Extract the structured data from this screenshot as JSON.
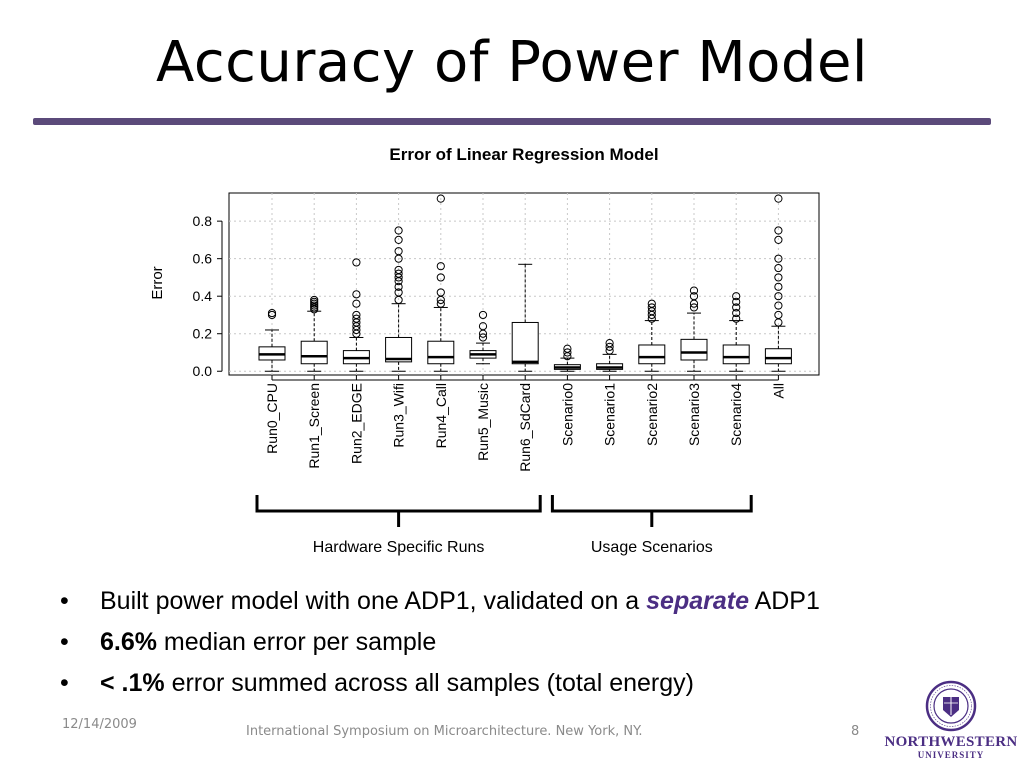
{
  "slide": {
    "title": "Accuracy of Power Model",
    "bullets": [
      {
        "parts": [
          {
            "text": "Built power model with one ADP1, validated on a ",
            "style": "normal"
          },
          {
            "text": "separate",
            "style": "emph"
          },
          {
            "text": " ADP1",
            "style": "normal"
          }
        ]
      },
      {
        "parts": [
          {
            "text": "6.6%",
            "style": "bold"
          },
          {
            "text": " median error per sample",
            "style": "normal"
          }
        ]
      },
      {
        "parts": [
          {
            "text": "< .1%",
            "style": "bold"
          },
          {
            "text": " error summed across all samples (total energy)",
            "style": "normal"
          }
        ]
      }
    ],
    "bullet_symbol": "•"
  },
  "footer": {
    "date": "12/14/2009",
    "text": "International Symposium on Microarchitecture.  New York, NY.",
    "page": "8"
  },
  "logo": {
    "line1": "NORTHWESTERN",
    "line2": "UNIVERSITY"
  },
  "colors": {
    "accent": "#5b4a7a",
    "brand": "#4b2e83"
  },
  "chart_data": {
    "type": "boxplot",
    "title": "Error of Linear Regression Model",
    "ylabel": "Error",
    "xlabel": "",
    "ylim": [
      -0.02,
      0.95
    ],
    "yticks": [
      0.0,
      0.2,
      0.4,
      0.6,
      0.8
    ],
    "ytick_labels": [
      "0.0",
      "0.2",
      "0.4",
      "0.6",
      "0.8"
    ],
    "grid": true,
    "categories": [
      "Run0_CPU",
      "Run1_Screen",
      "Run2_EDGE",
      "Run3_Wifi",
      "Run4_Call",
      "Run5_Music",
      "Run6_SdCard",
      "Scenario0",
      "Scenario1",
      "Scenario2",
      "Scenario3",
      "Scenario4",
      "All"
    ],
    "boxes": [
      {
        "whisker_low": 0.0,
        "q1": 0.06,
        "median": 0.09,
        "q3": 0.13,
        "whisker_high": 0.22,
        "outliers": [
          0.3,
          0.31
        ]
      },
      {
        "whisker_low": 0.0,
        "q1": 0.04,
        "median": 0.08,
        "q3": 0.16,
        "whisker_high": 0.32,
        "outliers": [
          0.33,
          0.34,
          0.35,
          0.36,
          0.37,
          0.38
        ]
      },
      {
        "whisker_low": 0.0,
        "q1": 0.04,
        "median": 0.07,
        "q3": 0.11,
        "whisker_high": 0.18,
        "outliers": [
          0.2,
          0.22,
          0.24,
          0.26,
          0.28,
          0.3,
          0.36,
          0.41,
          0.58
        ]
      },
      {
        "whisker_low": 0.0,
        "q1": 0.05,
        "median": 0.065,
        "q3": 0.18,
        "whisker_high": 0.36,
        "outliers": [
          0.38,
          0.42,
          0.45,
          0.48,
          0.5,
          0.52,
          0.54,
          0.6,
          0.64,
          0.7,
          0.75
        ]
      },
      {
        "whisker_low": 0.0,
        "q1": 0.04,
        "median": 0.075,
        "q3": 0.16,
        "whisker_high": 0.34,
        "outliers": [
          0.36,
          0.38,
          0.42,
          0.5,
          0.56,
          0.92
        ]
      },
      {
        "whisker_low": 0.04,
        "q1": 0.07,
        "median": 0.09,
        "q3": 0.11,
        "whisker_high": 0.15,
        "outliers": [
          0.18,
          0.2,
          0.24,
          0.3
        ]
      },
      {
        "whisker_low": 0.0,
        "q1": 0.04,
        "median": 0.05,
        "q3": 0.26,
        "whisker_high": 0.57,
        "outliers": []
      },
      {
        "whisker_low": 0.0,
        "q1": 0.01,
        "median": 0.02,
        "q3": 0.035,
        "whisker_high": 0.07,
        "outliers": [
          0.08,
          0.1,
          0.12
        ]
      },
      {
        "whisker_low": 0.0,
        "q1": 0.01,
        "median": 0.02,
        "q3": 0.04,
        "whisker_high": 0.09,
        "outliers": [
          0.11,
          0.13,
          0.15
        ]
      },
      {
        "whisker_low": 0.0,
        "q1": 0.04,
        "median": 0.075,
        "q3": 0.14,
        "whisker_high": 0.27,
        "outliers": [
          0.28,
          0.3,
          0.32,
          0.34,
          0.36
        ]
      },
      {
        "whisker_low": 0.0,
        "q1": 0.06,
        "median": 0.1,
        "q3": 0.17,
        "whisker_high": 0.31,
        "outliers": [
          0.34,
          0.36,
          0.4,
          0.43
        ]
      },
      {
        "whisker_low": 0.0,
        "q1": 0.04,
        "median": 0.075,
        "q3": 0.14,
        "whisker_high": 0.27,
        "outliers": [
          0.28,
          0.31,
          0.34,
          0.37,
          0.4
        ]
      },
      {
        "whisker_low": 0.0,
        "q1": 0.04,
        "median": 0.07,
        "q3": 0.12,
        "whisker_high": 0.24,
        "outliers": [
          0.26,
          0.3,
          0.35,
          0.4,
          0.45,
          0.5,
          0.55,
          0.6,
          0.7,
          0.75,
          0.92
        ]
      }
    ],
    "groups": [
      {
        "label": "Hardware Specific Runs",
        "from": 0,
        "to": 6
      },
      {
        "label": "Usage Scenarios",
        "from": 7,
        "to": 11
      }
    ]
  }
}
